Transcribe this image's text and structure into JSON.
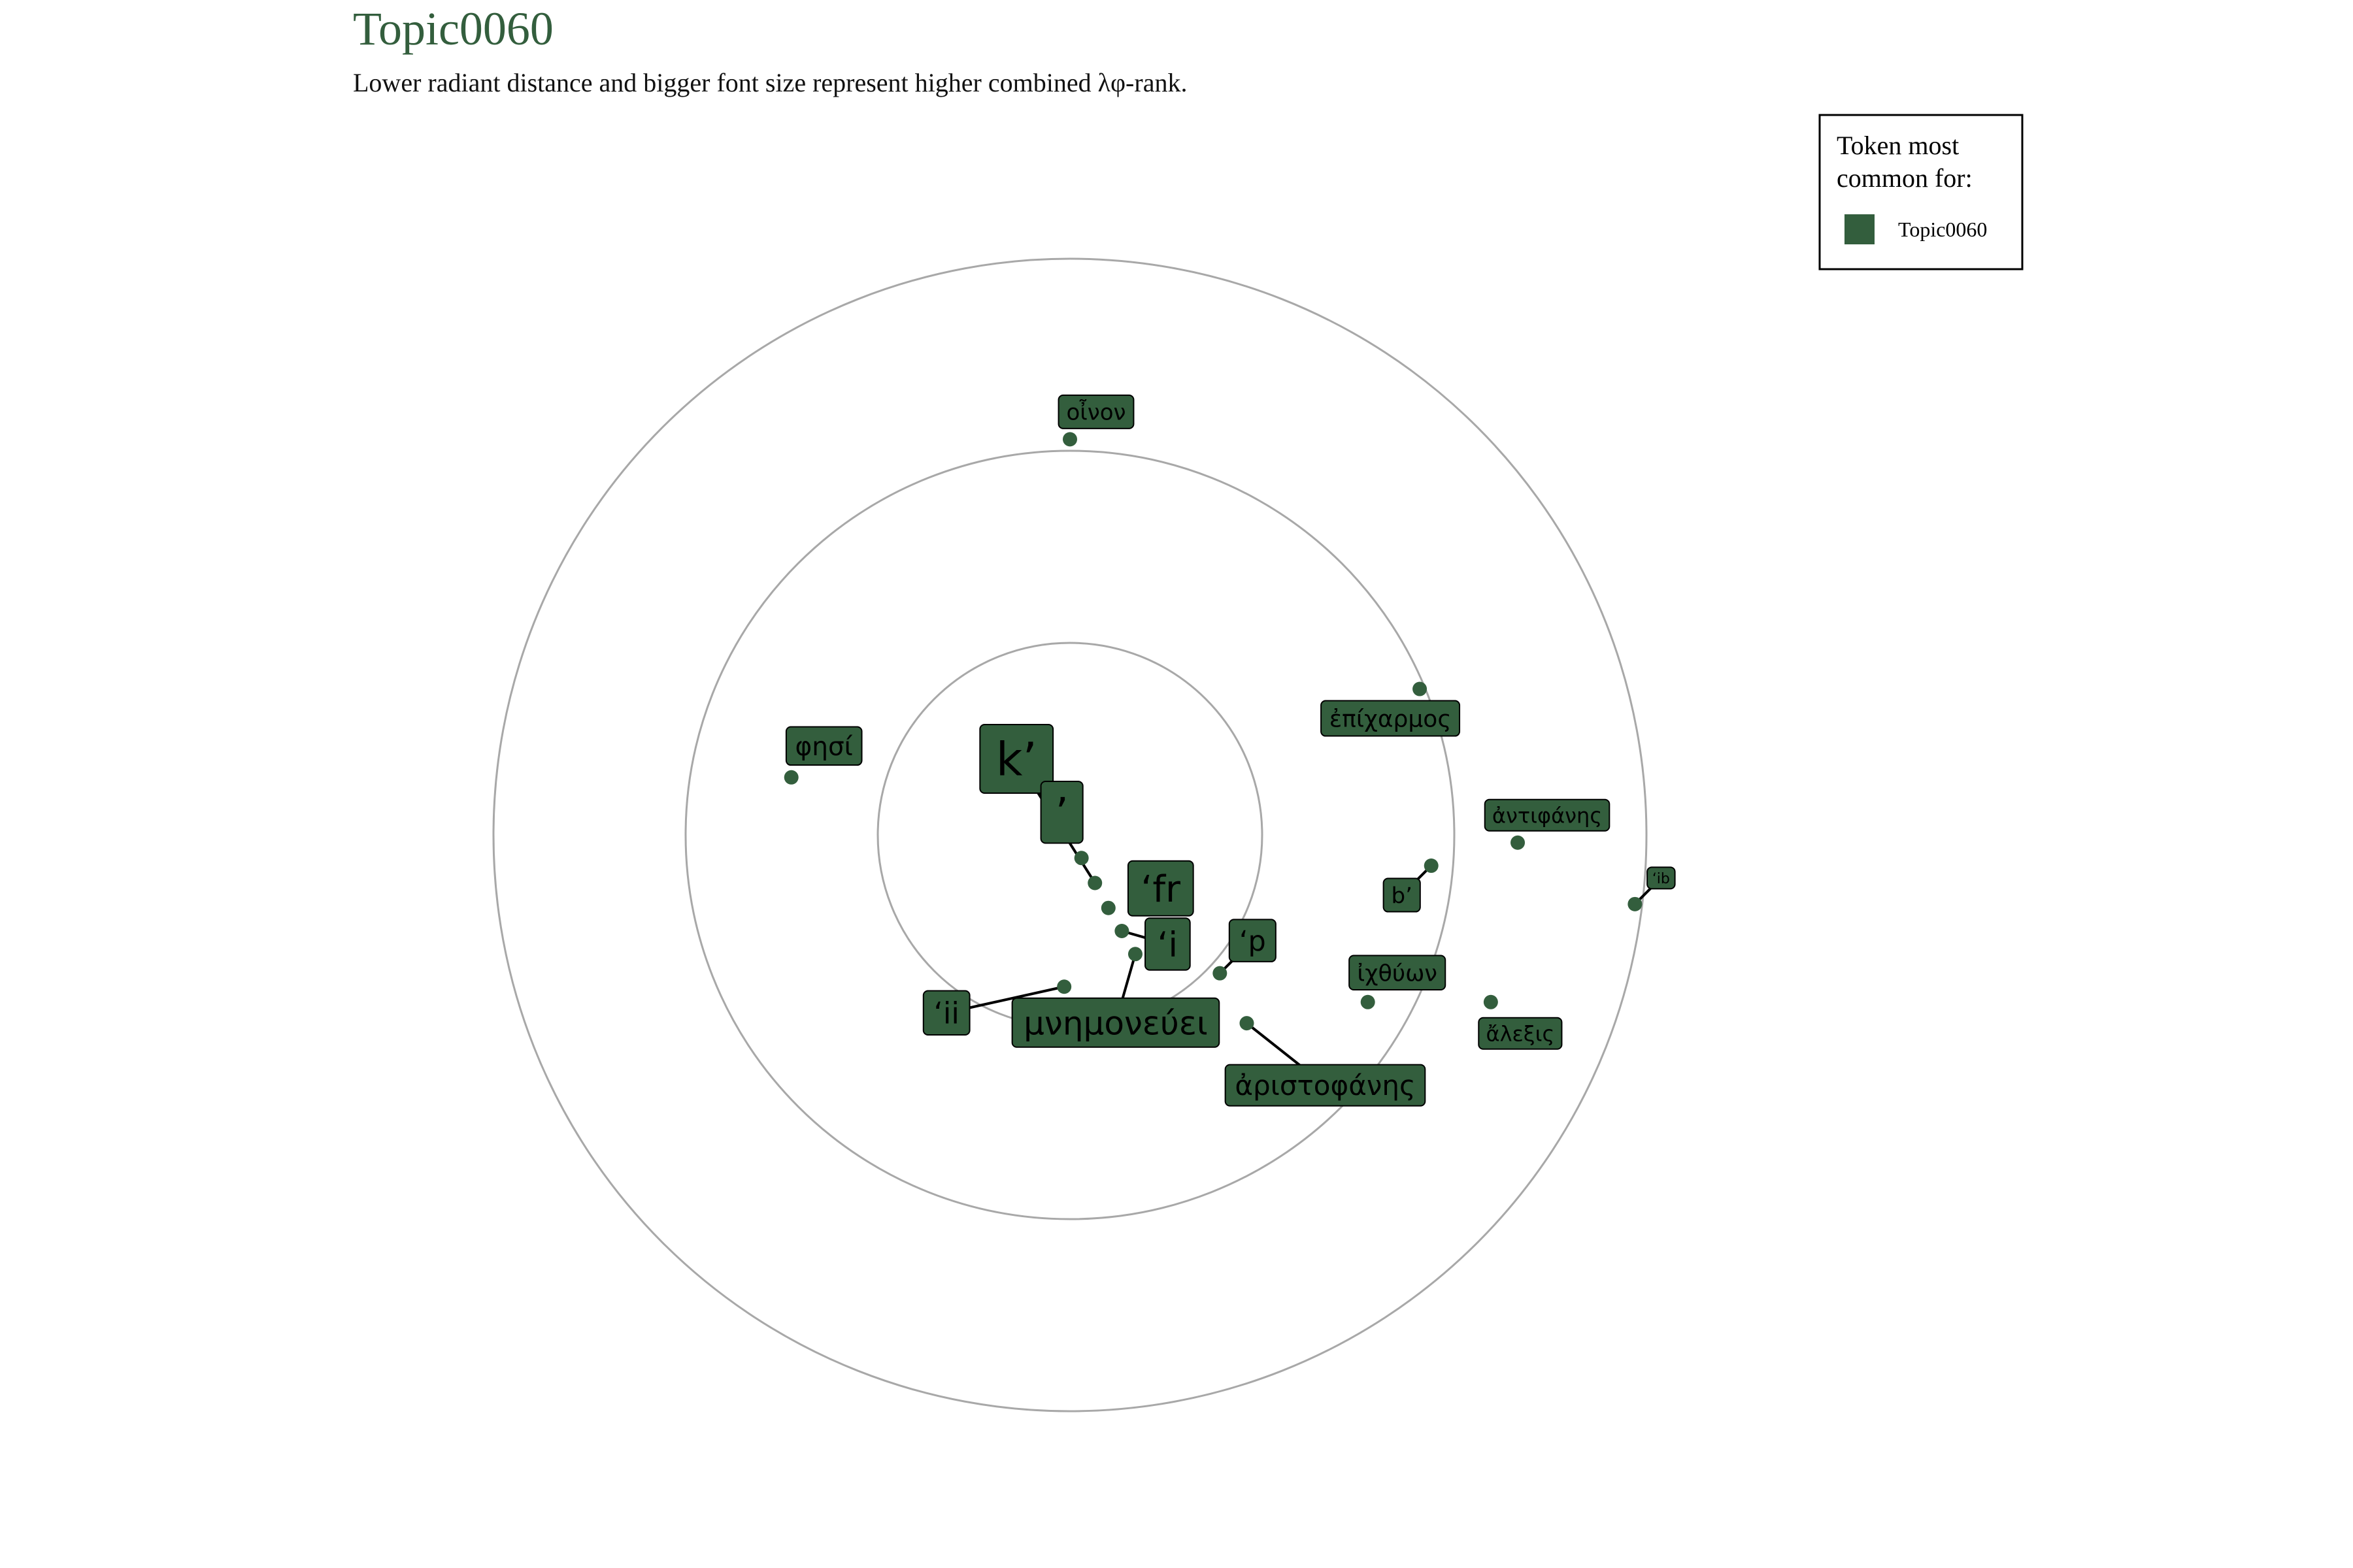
{
  "chart_data": {
    "type": "scatter",
    "subtype": "radial-token-plot",
    "title": "Topic0060",
    "subtitle": "Lower radiant distance and bigger font size represent higher combined λφ-rank.",
    "legend": {
      "title_line1": "Token most",
      "title_line2": "common for:",
      "entries": [
        {
          "label": "Topic0060",
          "color": "#335e3d"
        }
      ],
      "placement": "top-right"
    },
    "ring_radii": [
      1,
      2,
      3
    ],
    "grid": true,
    "series": [
      {
        "name": "Topic0060",
        "color": "#335e3d",
        "points": [
          {
            "token": "k’",
            "x": 0.13,
            "y": -0.25,
            "size": 5
          },
          {
            "token": "’",
            "x": 0.06,
            "y": -0.12,
            "size": 4.5
          },
          {
            "token": "‘fr",
            "x": 0.2,
            "y": -0.38,
            "size": 4
          },
          {
            "token": "‘i",
            "x": 0.27,
            "y": -0.5,
            "size": 3.8
          },
          {
            "token": "μνημονεύει",
            "x": 0.34,
            "y": -0.62,
            "size": 3.6
          },
          {
            "token": "‘ii",
            "x": -0.03,
            "y": -0.79,
            "size": 3.2
          },
          {
            "token": "‘p",
            "x": 0.78,
            "y": -0.72,
            "size": 3.1
          },
          {
            "token": "ἀριστοφάνης",
            "x": 0.92,
            "y": -0.98,
            "size": 3.0
          },
          {
            "token": "φησί",
            "x": -1.45,
            "y": 0.3,
            "size": 2.8
          },
          {
            "token": "ἐπίχαρμος",
            "x": 1.82,
            "y": 0.76,
            "size": 2.6
          },
          {
            "token": "ἰχθύων",
            "x": 1.55,
            "y": -0.87,
            "size": 2.5
          },
          {
            "token": "b’",
            "x": 1.88,
            "y": -0.16,
            "size": 2.4
          },
          {
            "token": "οἶνον",
            "x": 0.0,
            "y": 2.06,
            "size": 2.4
          },
          {
            "token": "ἀντιφάνης",
            "x": 2.33,
            "y": -0.04,
            "size": 2.3
          },
          {
            "token": "ἄλεξις",
            "x": 2.19,
            "y": -0.87,
            "size": 2.3
          },
          {
            "token": "‘ib",
            "x": 2.94,
            "y": -0.36,
            "size": 1.6
          }
        ]
      }
    ]
  }
}
